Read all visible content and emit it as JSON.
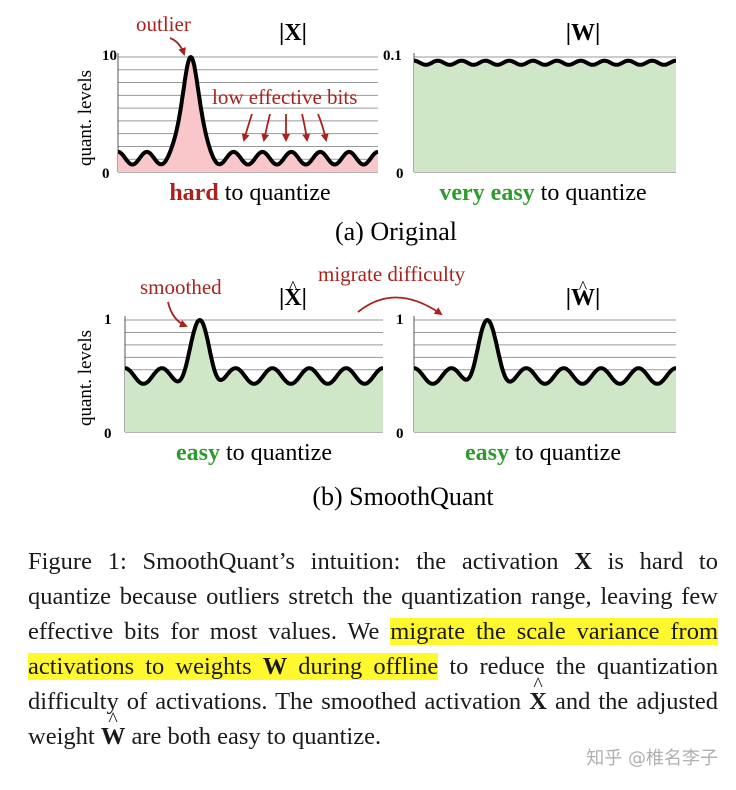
{
  "figure": {
    "panel_a": {
      "x_title": "|X|",
      "w_title": "|W|",
      "y_axis_label": "quant. levels",
      "x_ymax_label": "10",
      "w_ymax_label": "0.1",
      "y_zero_label": "0",
      "x_peak_value": 10,
      "x_ripple_value": 1.2,
      "w_ripple_value": 0.095,
      "outlier_annotation": "outlier",
      "low_bits_annotation": "low effective bits",
      "x_status": {
        "strong": "hard",
        "rest": " to quantize"
      },
      "w_status": {
        "strong1": "very",
        "strong2": "easy",
        "rest": " to quantize"
      },
      "subcaption": "(a) Original"
    },
    "panel_b": {
      "x_title_prefix": "|",
      "x_title_letter": "X",
      "x_title_suffix": "|",
      "w_title_prefix": "|",
      "w_title_letter": "W",
      "w_title_suffix": "|",
      "y_axis_label": "quant. levels",
      "ymax_label": "1",
      "y_zero_label": "0",
      "peak_value": 1,
      "ripple_value": 0.5,
      "smoothed_annotation": "smoothed",
      "migrate_annotation": "migrate difficulty",
      "x_status": {
        "strong": "easy",
        "rest": " to quantize"
      },
      "w_status": {
        "strong": "easy",
        "rest": " to quantize"
      },
      "subcaption": "(b) SmoothQuant"
    },
    "colors": {
      "red_fill": "#f9c6c9",
      "green_fill": "#cfe6c7",
      "dark_red": "#a8231e",
      "green_text": "#2e9b2e",
      "grid": "#9a9a9a"
    }
  },
  "caption": {
    "p1": "Figure 1: SmoothQuant’s intuition: the activation ",
    "X1": "X",
    "p2": " is hard to quantize because outliers stretch the quantization range, leaving few effective bits for most values. We ",
    "hl1": "migrate the scale variance from activations to weights ",
    "W1": "W",
    "hl2": " during offline",
    "p3": " to reduce the quantization difficulty of activations. The smoothed activation ",
    "X2": "X",
    "p4": " and the adjusted weight ",
    "W2": "W",
    "p5": " are both easy to quantize."
  },
  "watermark": "知乎 @椎名李子"
}
